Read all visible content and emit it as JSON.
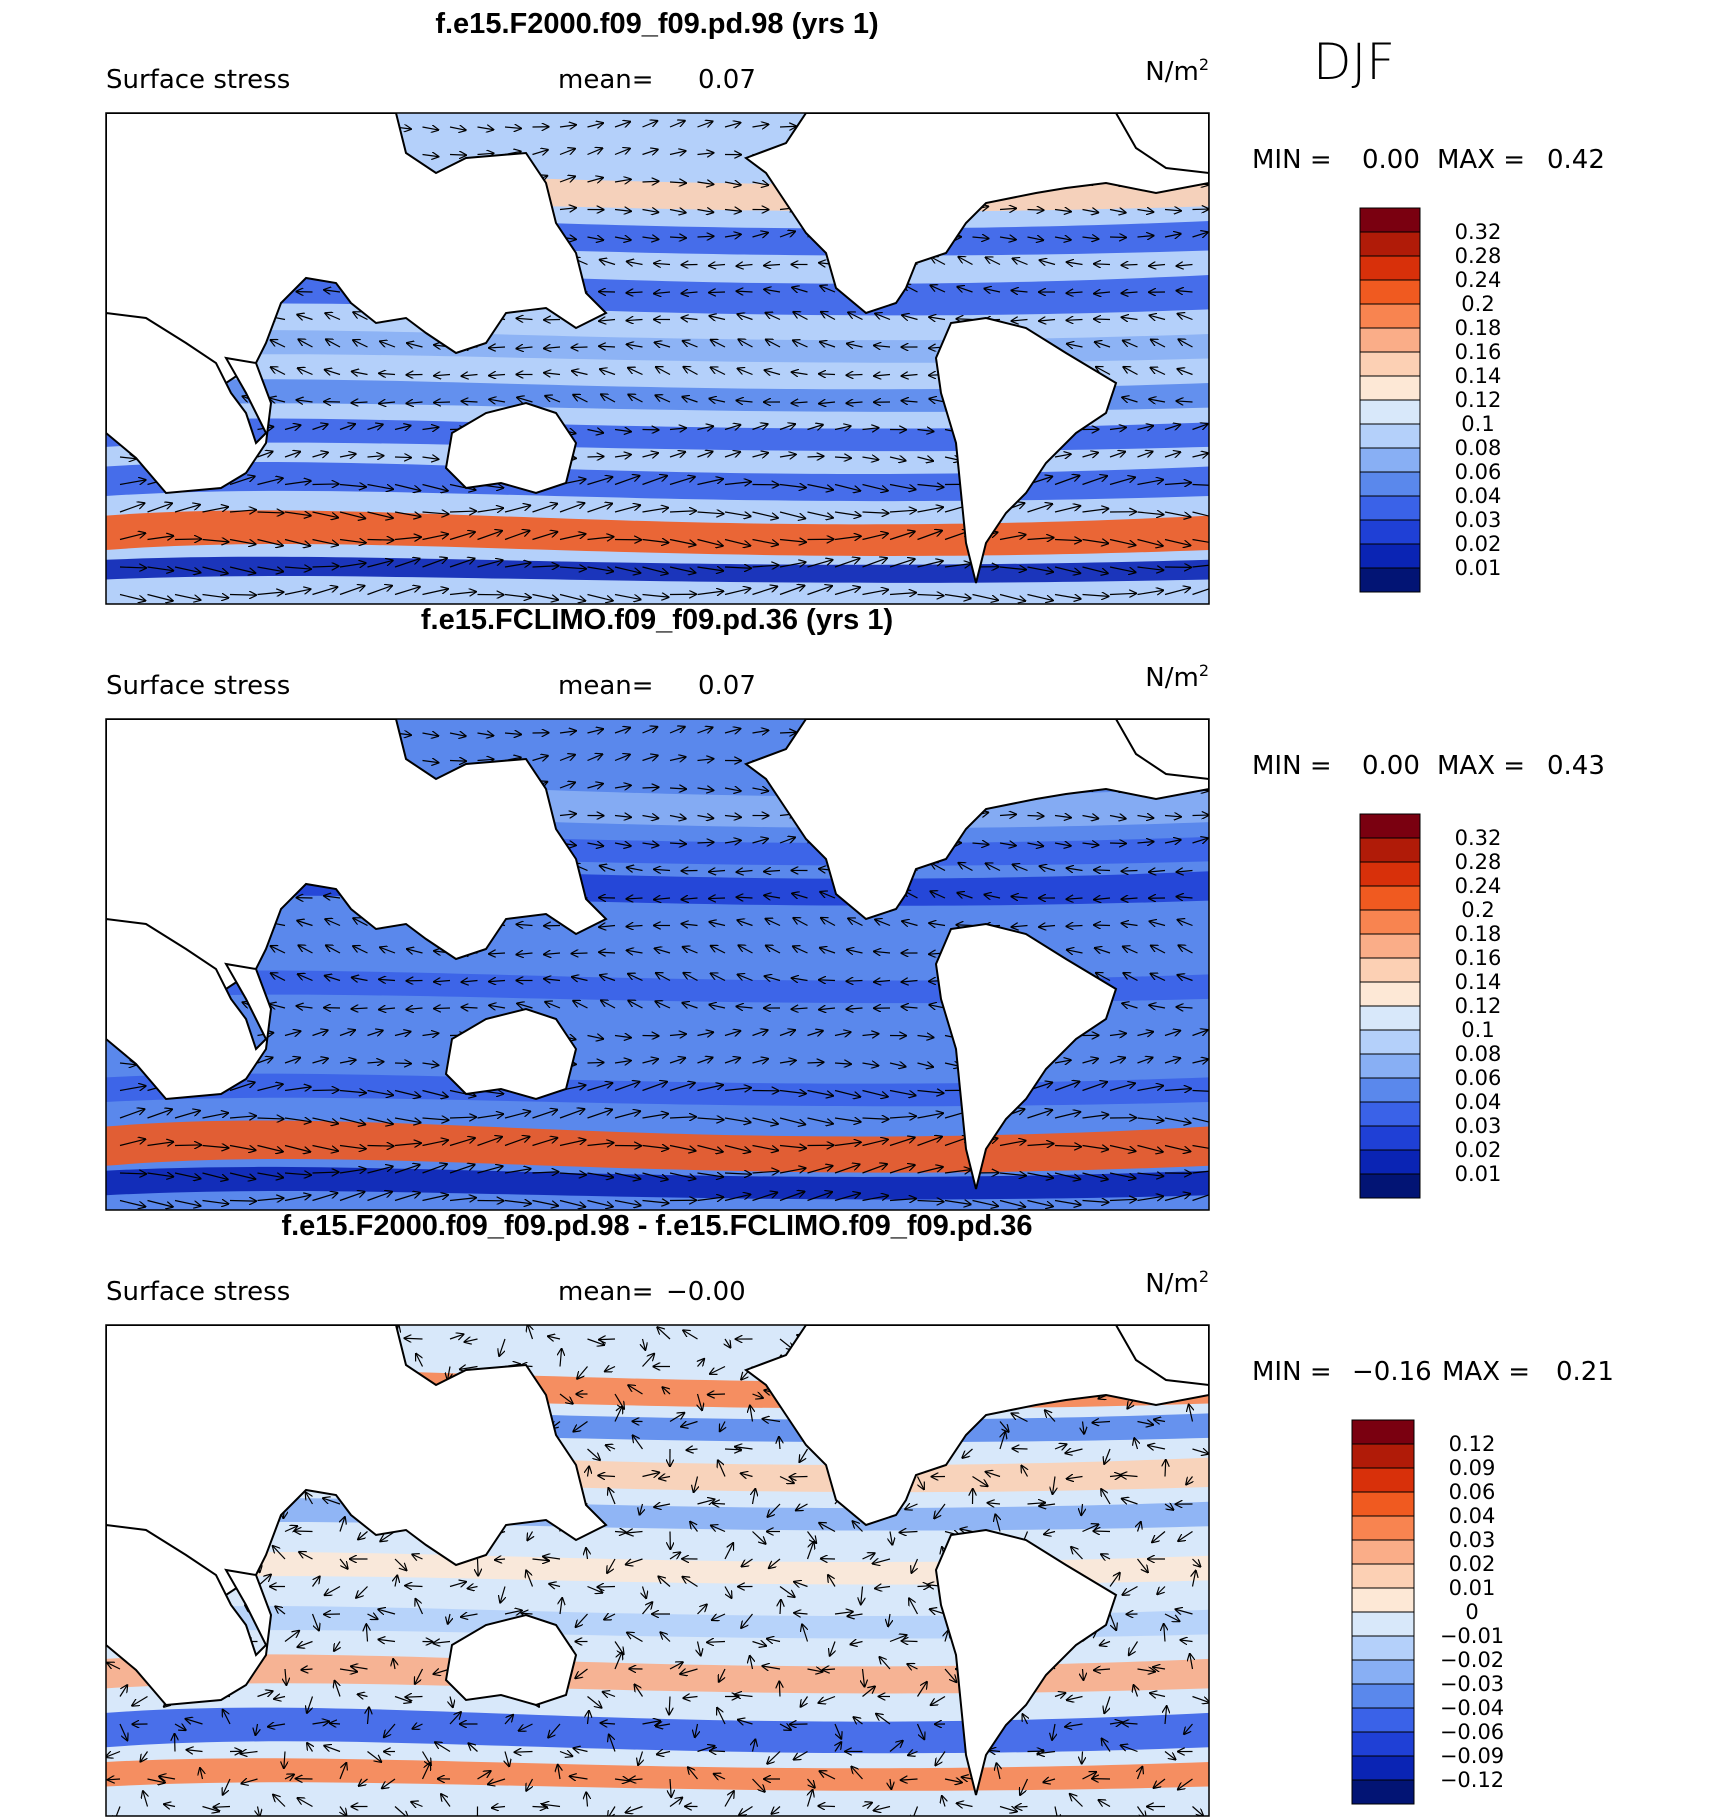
{
  "season": "DJF",
  "panels": [
    {
      "title": "f.e15.F2000.f09_f09.pd.98 (yrs 1)",
      "variable": "Surface stress",
      "mean_label": "mean=",
      "mean_value": "0.07",
      "units": "N/m",
      "units_exp": "2",
      "min_label": "MIN =",
      "min_value": "0.00",
      "max_label": "MAX =",
      "max_value": "0.42",
      "colorbar_ticks": [
        "0.32",
        "0.28",
        "0.24",
        "0.2",
        "0.18",
        "0.16",
        "0.14",
        "0.12",
        "0.1",
        "0.08",
        "0.06",
        "0.04",
        "0.03",
        "0.02",
        "0.01"
      ],
      "colorbar_colors": [
        "#7a0010",
        "#b01b08",
        "#d8300a",
        "#f05a20",
        "#f88450",
        "#faad88",
        "#fcd0b4",
        "#fde8d6",
        "#d8e8fa",
        "#b4d0fa",
        "#88aff4",
        "#5a88ec",
        "#3a62e8",
        "#1f40d6",
        "#0a24b4",
        "#021474"
      ]
    },
    {
      "title": "f.e15.FCLIMO.f09_f09.pd.36 (yrs 1)",
      "variable": "Surface stress",
      "mean_label": "mean=",
      "mean_value": "0.07",
      "units": "N/m",
      "units_exp": "2",
      "min_label": "MIN =",
      "min_value": "0.00",
      "max_label": "MAX =",
      "max_value": "0.43",
      "colorbar_ticks": [
        "0.32",
        "0.28",
        "0.24",
        "0.2",
        "0.18",
        "0.16",
        "0.14",
        "0.12",
        "0.1",
        "0.08",
        "0.06",
        "0.04",
        "0.03",
        "0.02",
        "0.01"
      ],
      "colorbar_colors": [
        "#7a0010",
        "#b01b08",
        "#d8300a",
        "#f05a20",
        "#f88450",
        "#faad88",
        "#fcd0b4",
        "#fde8d6",
        "#d8e8fa",
        "#b4d0fa",
        "#88aff4",
        "#5a88ec",
        "#3a62e8",
        "#1f40d6",
        "#0a24b4",
        "#021474"
      ]
    },
    {
      "title": "f.e15.F2000.f09_f09.pd.98 - f.e15.FCLIMO.f09_f09.pd.36",
      "variable": "Surface stress",
      "mean_label": "mean=",
      "mean_value": "−0.00",
      "units": "N/m",
      "units_exp": "2",
      "min_label": "MIN =",
      "min_value": "−0.16",
      "max_label": "MAX =",
      "max_value": "0.21",
      "colorbar_ticks": [
        "0.12",
        "0.09",
        "0.06",
        "0.04",
        "0.03",
        "0.02",
        "0.01",
        "0",
        "−0.01",
        "−0.02",
        "−0.03",
        "−0.04",
        "−0.06",
        "−0.09",
        "−0.12"
      ],
      "colorbar_colors": [
        "#7a0010",
        "#b01b08",
        "#d8300a",
        "#f05a20",
        "#f88450",
        "#faad88",
        "#fcd0b4",
        "#fde8d6",
        "#d8e8fa",
        "#b4d0fa",
        "#88aff4",
        "#5a88ec",
        "#3a62e8",
        "#1f40d6",
        "#0a24b4",
        "#021474"
      ]
    }
  ]
}
